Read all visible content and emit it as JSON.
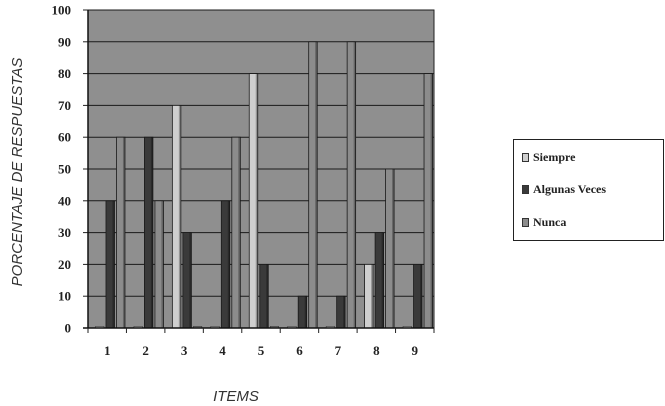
{
  "chart_data": {
    "type": "bar",
    "title": "",
    "xlabel": "ITEMS",
    "ylabel": "PORCENTAJE DE RESPUESTAS",
    "categories": [
      "1",
      "2",
      "3",
      "4",
      "5",
      "6",
      "7",
      "8",
      "9"
    ],
    "series": [
      {
        "name": "Siempre",
        "color": "#cfcfcf",
        "values": [
          0,
          0,
          70,
          0,
          80,
          0,
          0,
          20,
          0
        ]
      },
      {
        "name": "Algunas Veces",
        "color": "#3a3a3a",
        "values": [
          40,
          60,
          30,
          40,
          20,
          10,
          10,
          30,
          20
        ]
      },
      {
        "name": "Nunca",
        "color": "#8c8c8c",
        "values": [
          60,
          40,
          0,
          60,
          0,
          90,
          90,
          50,
          80
        ]
      }
    ],
    "ylim": [
      0,
      100
    ],
    "yticks": [
      0,
      10,
      20,
      30,
      40,
      50,
      60,
      70,
      80,
      90,
      100
    ],
    "grid": true,
    "legend_position": "right",
    "plot_background": "#8f8f8f"
  }
}
